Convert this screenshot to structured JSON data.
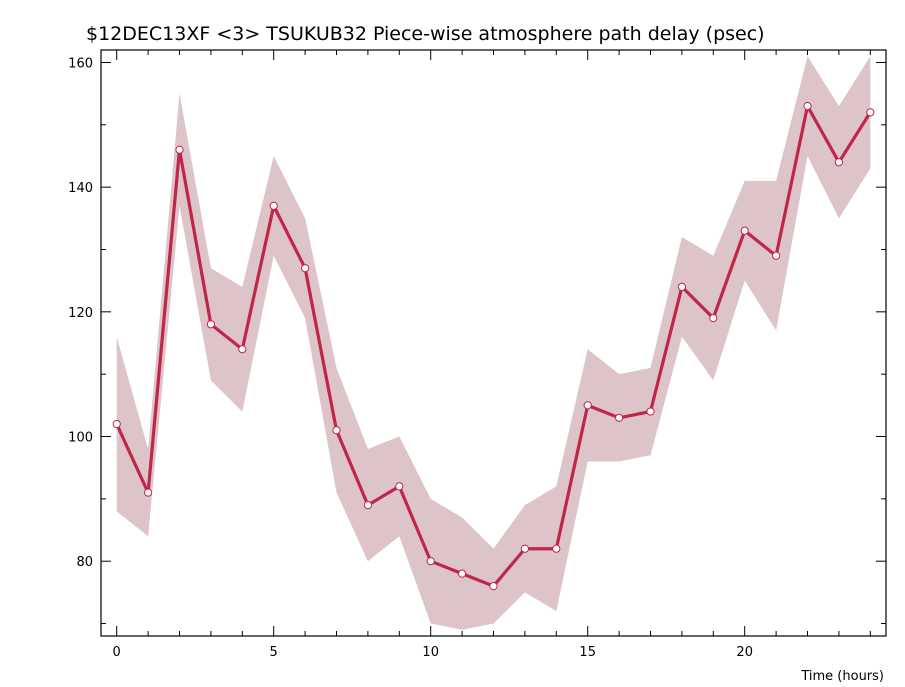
{
  "chart_data": {
    "type": "line",
    "title": "$12DEC13XF <3>  TSUKUB32  Piece-wise atmosphere path delay (psec)",
    "xlabel": "Time (hours)",
    "ylabel": "",
    "xlim": [
      -0.5,
      24.5
    ],
    "ylim": [
      68,
      162
    ],
    "x_ticks": [
      0,
      5,
      10,
      15,
      20
    ],
    "y_ticks": [
      80,
      100,
      120,
      140,
      160
    ],
    "grid": false,
    "colors": {
      "line": "#c0254a",
      "band": "#dcc4c8",
      "marker_fill": "#ffffff"
    },
    "series": [
      {
        "x": [
          0,
          1,
          2,
          3,
          4,
          5,
          6,
          7,
          8,
          9,
          10,
          11,
          12,
          13,
          14,
          15,
          16,
          17,
          18,
          19,
          20,
          21,
          22,
          23,
          24
        ],
        "values": [
          102,
          91,
          146,
          118,
          114,
          137,
          127,
          101,
          89,
          92,
          80,
          78,
          76,
          82,
          82,
          105,
          103,
          104,
          124,
          119,
          133,
          129,
          153,
          144,
          152
        ],
        "band_upper": [
          116,
          98,
          155,
          127,
          124,
          145,
          135,
          111,
          98,
          100,
          90,
          87,
          82,
          89,
          92,
          114,
          110,
          111,
          132,
          129,
          141,
          141,
          161,
          153,
          161
        ],
        "band_lower": [
          88,
          84,
          137,
          109,
          104,
          129,
          119,
          91,
          80,
          84,
          70,
          69,
          70,
          75,
          72,
          96,
          96,
          97,
          116,
          109,
          125,
          117,
          145,
          135,
          143
        ]
      }
    ]
  }
}
